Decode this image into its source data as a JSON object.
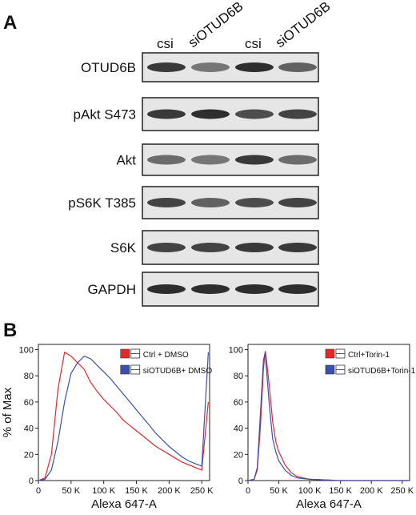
{
  "panel_a": {
    "label": "A",
    "lanes": [
      "csi",
      "siOTUD6B",
      "csi",
      "siOTUD6B"
    ],
    "rows": [
      "OTUD6B",
      "pAkt S473",
      "Akt",
      "pS6K T385",
      "S6K",
      "GAPDH"
    ]
  },
  "panel_b_label": "B",
  "chart_data": [
    {
      "type": "line",
      "x_label": "Alexa 647-A",
      "y_label": "% of Max",
      "x": [
        0,
        10000,
        20000,
        30000,
        40000,
        50000,
        60000,
        70000,
        80000,
        90000,
        100000,
        110000,
        120000,
        130000,
        140000,
        150000,
        160000,
        170000,
        180000,
        190000,
        200000,
        210000,
        220000,
        230000,
        240000,
        250000,
        260000
      ],
      "series": [
        {
          "name": "Ctrl + DMSO",
          "color": "#e8262a",
          "values": [
            0,
            2,
            20,
            70,
            98,
            95,
            90,
            85,
            75,
            68,
            62,
            57,
            52,
            46,
            42,
            38,
            34,
            30,
            26,
            23,
            20,
            17,
            14,
            12,
            10,
            8,
            60
          ]
        },
        {
          "name": "siOTUD6B+ DMSO",
          "color": "#3a4fb0",
          "values": [
            0,
            1,
            8,
            30,
            60,
            82,
            90,
            95,
            93,
            88,
            83,
            78,
            72,
            66,
            60,
            54,
            48,
            42,
            36,
            31,
            26,
            22,
            18,
            15,
            13,
            11,
            98
          ]
        }
      ],
      "xlim": [
        0,
        262000
      ],
      "ylim": [
        0,
        104
      ],
      "xticks": [
        0,
        {
          "value": 50000,
          "label": "50 K"
        },
        {
          "value": 100000,
          "label": "100 K"
        },
        {
          "value": 150000,
          "label": "150 K"
        },
        {
          "value": 200000,
          "label": "200 K"
        },
        {
          "value": 250000,
          "label": "250 K"
        }
      ],
      "yticks": [
        0,
        20,
        40,
        60,
        80,
        100
      ],
      "legend": "upper right"
    },
    {
      "type": "line",
      "x_label": "Alexa 647-A",
      "x": [
        0,
        10000,
        15000,
        20000,
        25000,
        28000,
        30000,
        35000,
        40000,
        45000,
        50000,
        60000,
        70000,
        80000,
        100000,
        150000,
        200000,
        260000
      ],
      "series": [
        {
          "name": "Ctrl+Torin-1",
          "color": "#e8262a",
          "values": [
            0,
            1,
            8,
            40,
            85,
            99,
            92,
            70,
            45,
            30,
            22,
            12,
            6,
            3,
            1,
            0,
            0,
            0
          ]
        },
        {
          "name": "siOTUD6B+Torin-1",
          "color": "#3a4fb0",
          "values": [
            0,
            1,
            10,
            50,
            92,
            98,
            85,
            55,
            32,
            22,
            15,
            8,
            4,
            2,
            1,
            0,
            0,
            0
          ]
        }
      ],
      "xlim": [
        0,
        262000
      ],
      "ylim": [
        0,
        104
      ],
      "xticks": [
        0,
        {
          "value": 50000,
          "label": "50 K"
        },
        {
          "value": 100000,
          "label": "100 K"
        },
        {
          "value": 150000,
          "label": "150 K"
        },
        {
          "value": 200000,
          "label": "200 K"
        },
        {
          "value": 250000,
          "label": "250 K"
        }
      ],
      "yticks": [
        0,
        20,
        40,
        60,
        80,
        100
      ],
      "legend": "upper right"
    }
  ]
}
